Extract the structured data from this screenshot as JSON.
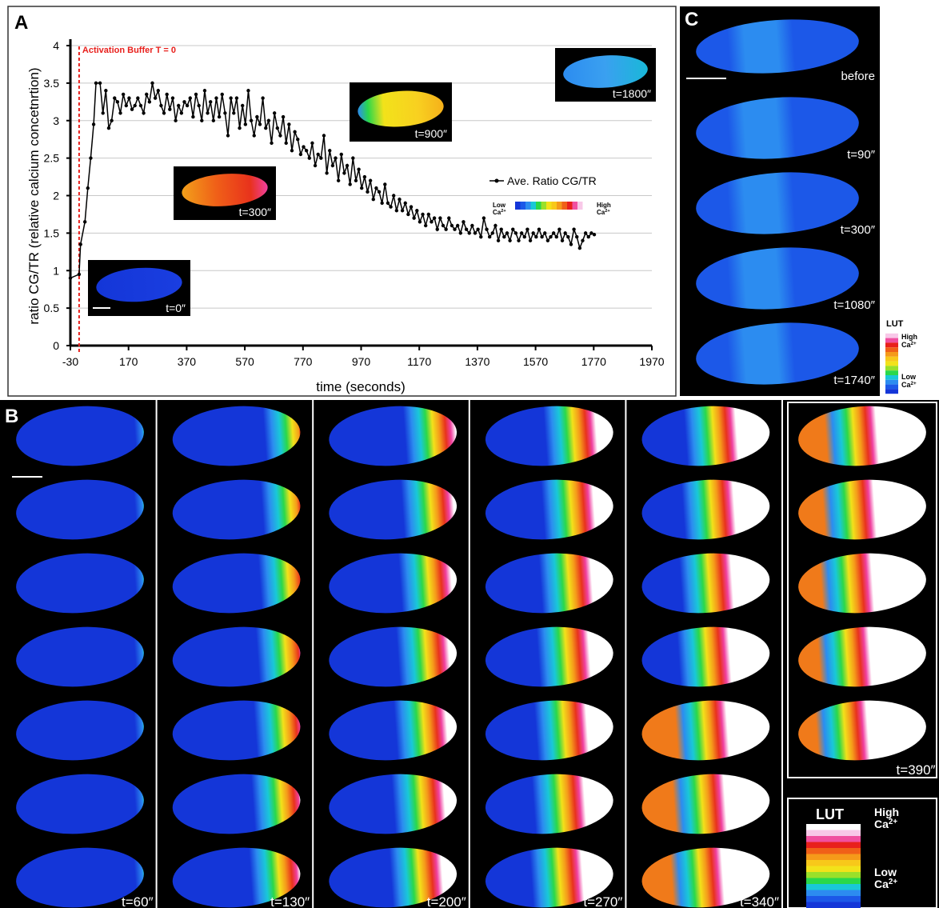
{
  "panels": {
    "a": "A",
    "b": "B",
    "c": "C"
  },
  "chart_data": {
    "type": "line",
    "x_label": "time (seconds)",
    "y_label": "ratio CG/TR (relative calcium concetnrtion)",
    "markers": [
      {
        "x": 0,
        "label": "Activation Buffer T = 0",
        "color": "#e8201c"
      }
    ],
    "xlim": [
      -30,
      1970
    ],
    "xticks": [
      -30,
      170,
      370,
      570,
      770,
      970,
      1170,
      1370,
      1570,
      1770,
      1970
    ],
    "ylim": [
      0,
      4
    ],
    "yticks": [
      0,
      0.5,
      1,
      1.5,
      2,
      2.5,
      3,
      3.5,
      4
    ],
    "grid": true,
    "legend": "right",
    "insets": [
      "t=0″",
      "t=300″",
      "t=900″",
      "t=1800″"
    ],
    "series": [
      {
        "name": "Ave. Ratio CG/TR",
        "color": "#000000",
        "x": [
          -30,
          0,
          5,
          20,
          30,
          40,
          50,
          58,
          72,
          82,
          92,
          102,
          112,
          122,
          132,
          142,
          152,
          162,
          172,
          182,
          192,
          202,
          212,
          222,
          232,
          242,
          252,
          262,
          272,
          282,
          292,
          302,
          312,
          322,
          332,
          342,
          352,
          362,
          372,
          382,
          392,
          402,
          412,
          422,
          432,
          442,
          452,
          462,
          472,
          482,
          492,
          502,
          512,
          522,
          532,
          542,
          552,
          562,
          572,
          582,
          592,
          602,
          612,
          622,
          632,
          642,
          652,
          662,
          672,
          682,
          692,
          702,
          712,
          722,
          732,
          742,
          752,
          762,
          772,
          782,
          792,
          802,
          812,
          822,
          832,
          842,
          852,
          862,
          872,
          882,
          892,
          902,
          912,
          922,
          932,
          942,
          952,
          962,
          972,
          982,
          992,
          1002,
          1012,
          1022,
          1032,
          1042,
          1052,
          1062,
          1072,
          1082,
          1092,
          1102,
          1112,
          1122,
          1132,
          1142,
          1152,
          1162,
          1172,
          1182,
          1192,
          1202,
          1212,
          1222,
          1232,
          1242,
          1252,
          1262,
          1272,
          1282,
          1292,
          1302,
          1312,
          1322,
          1332,
          1342,
          1352,
          1362,
          1372,
          1382,
          1392,
          1402,
          1412,
          1422,
          1432,
          1442,
          1452,
          1462,
          1472,
          1482,
          1492,
          1502,
          1512,
          1522,
          1532,
          1542,
          1552,
          1562,
          1572,
          1582,
          1592,
          1602,
          1612,
          1622,
          1632,
          1642,
          1652,
          1662,
          1672,
          1682,
          1692,
          1702,
          1712,
          1722,
          1732,
          1742,
          1752,
          1762,
          1772
        ],
        "values": [
          0.9,
          0.95,
          1.35,
          1.65,
          2.1,
          2.5,
          2.95,
          3.5,
          3.5,
          3.1,
          3.4,
          2.9,
          3.0,
          3.3,
          3.25,
          3.1,
          3.35,
          3.2,
          3.3,
          3.15,
          3.2,
          3.3,
          3.2,
          3.1,
          3.35,
          3.25,
          3.5,
          3.3,
          3.4,
          3.2,
          3.1,
          3.35,
          3.15,
          3.3,
          3.0,
          3.2,
          3.1,
          3.25,
          3.2,
          3.3,
          3.05,
          3.35,
          3.2,
          3.0,
          3.4,
          3.1,
          3.25,
          3.0,
          3.3,
          3.05,
          3.35,
          3.1,
          2.8,
          3.3,
          3.1,
          3.3,
          2.9,
          3.2,
          2.95,
          3.4,
          3.0,
          2.8,
          3.05,
          2.95,
          3.3,
          2.9,
          3.0,
          2.7,
          3.1,
          2.9,
          2.8,
          3.05,
          2.7,
          2.95,
          2.6,
          2.85,
          2.75,
          2.55,
          2.65,
          2.6,
          2.5,
          2.7,
          2.4,
          2.55,
          2.5,
          2.8,
          2.3,
          2.6,
          2.4,
          2.5,
          2.2,
          2.55,
          2.3,
          2.4,
          2.15,
          2.5,
          2.2,
          2.35,
          2.1,
          2.25,
          2.05,
          2.2,
          1.95,
          2.1,
          2.05,
          1.9,
          2.15,
          1.9,
          1.85,
          2.0,
          1.8,
          1.95,
          1.8,
          1.9,
          1.75,
          1.85,
          1.7,
          1.8,
          1.65,
          1.75,
          1.6,
          1.75,
          1.65,
          1.7,
          1.55,
          1.7,
          1.6,
          1.55,
          1.7,
          1.6,
          1.55,
          1.6,
          1.5,
          1.65,
          1.55,
          1.5,
          1.6,
          1.5,
          1.55,
          1.45,
          1.7,
          1.55,
          1.45,
          1.5,
          1.6,
          1.4,
          1.55,
          1.45,
          1.5,
          1.4,
          1.55,
          1.5,
          1.4,
          1.5,
          1.45,
          1.55,
          1.4,
          1.5,
          1.45,
          1.55,
          1.45,
          1.5,
          1.4,
          1.45,
          1.5,
          1.45,
          1.55,
          1.4,
          1.5,
          1.45,
          1.35,
          1.55,
          1.45,
          1.3,
          1.4,
          1.5,
          1.45,
          1.5,
          1.48
        ]
      }
    ]
  },
  "lut": {
    "title": "LUT",
    "low": "Low",
    "high": "High",
    "ion": "Ca",
    "charge": "2+"
  },
  "panel_b": {
    "time_labels": [
      "t=60″",
      "t=130″",
      "t=200″",
      "t=270″",
      "t=340″",
      "t=390″"
    ]
  },
  "panel_c": {
    "labels": [
      "before",
      "t=90″",
      "t=300″",
      "t=1080″",
      "t=1740″"
    ]
  }
}
